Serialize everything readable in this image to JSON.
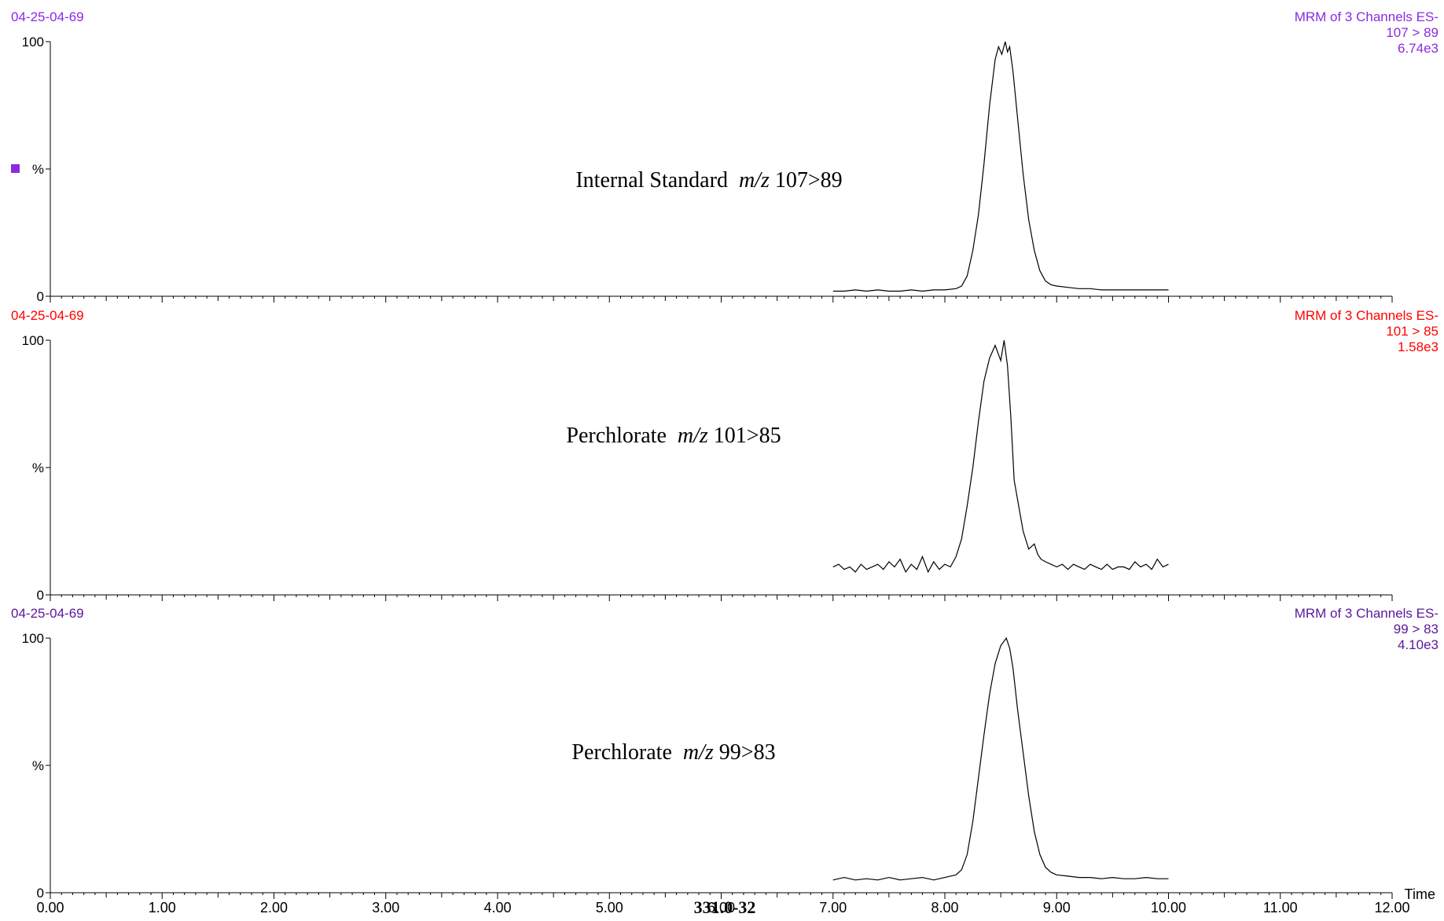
{
  "chart_data": [
    {
      "type": "line",
      "sample_id": "04-25-04-69",
      "function_label": "MRM of 3 Channels ES-",
      "transition": "107 > 89",
      "intensity": "6.74e3",
      "annotation": {
        "prefix": "Internal Standard",
        "mz_label": "m/z",
        "transition": "107>89"
      },
      "color": "#8a2be2",
      "marker": true,
      "ylabel": "%",
      "yticks": [
        "100",
        "0"
      ],
      "ylim": [
        0,
        100
      ],
      "xlim": [
        0,
        12
      ],
      "series": [
        {
          "x": [
            7.0,
            7.1,
            7.2,
            7.3,
            7.4,
            7.5,
            7.6,
            7.7,
            7.8,
            7.9,
            8.0,
            8.1,
            8.15,
            8.2,
            8.25,
            8.3,
            8.35,
            8.4,
            8.45,
            8.48,
            8.51,
            8.54,
            8.56,
            8.58,
            8.61,
            8.65,
            8.7,
            8.75,
            8.8,
            8.85,
            8.9,
            8.95,
            9.0,
            9.1,
            9.2,
            9.3,
            9.4,
            9.5,
            9.6,
            9.7,
            9.8,
            9.9,
            10.0
          ],
          "y": [
            2,
            2,
            2.5,
            2,
            2.5,
            2,
            2,
            2.5,
            2,
            2.5,
            2.5,
            3,
            4,
            8,
            18,
            32,
            52,
            75,
            93,
            98,
            95,
            100,
            96,
            98,
            88,
            70,
            48,
            30,
            18,
            10,
            6,
            4.5,
            4,
            3.5,
            3,
            3,
            2.5,
            2.5,
            2.5,
            2.5,
            2.5,
            2.5,
            2.5
          ]
        }
      ]
    },
    {
      "type": "line",
      "sample_id": "04-25-04-69",
      "function_label": "MRM of 3 Channels ES-",
      "transition": "101 > 85",
      "intensity": "1.58e3",
      "annotation": {
        "prefix": "Perchlorate",
        "mz_label": "m/z",
        "transition": "101>85"
      },
      "color": "#ff0000",
      "marker": false,
      "ylabel": "%",
      "yticks": [
        "100",
        "0"
      ],
      "ylim": [
        0,
        100
      ],
      "xlim": [
        0,
        12
      ],
      "series": [
        {
          "x": [
            7.0,
            7.05,
            7.1,
            7.15,
            7.2,
            7.25,
            7.3,
            7.35,
            7.4,
            7.45,
            7.5,
            7.55,
            7.6,
            7.65,
            7.7,
            7.75,
            7.8,
            7.85,
            7.9,
            7.95,
            8.0,
            8.05,
            8.1,
            8.15,
            8.2,
            8.25,
            8.3,
            8.35,
            8.4,
            8.45,
            8.5,
            8.53,
            8.56,
            8.59,
            8.62,
            8.66,
            8.7,
            8.75,
            8.8,
            8.83,
            8.86,
            8.9,
            8.95,
            9.0,
            9.05,
            9.1,
            9.15,
            9.2,
            9.25,
            9.3,
            9.35,
            9.4,
            9.45,
            9.5,
            9.55,
            9.6,
            9.65,
            9.7,
            9.75,
            9.8,
            9.85,
            9.9,
            9.95,
            10.0
          ],
          "y": [
            11,
            12,
            10,
            11,
            9,
            12,
            10,
            11,
            12,
            10,
            13,
            11,
            14,
            9,
            12,
            10,
            15,
            9,
            13,
            10,
            12,
            11,
            15,
            22,
            35,
            50,
            68,
            84,
            93,
            98,
            92,
            100,
            90,
            70,
            45,
            35,
            25,
            18,
            20,
            16,
            14,
            13,
            12,
            11,
            12,
            10,
            12,
            11,
            10,
            12,
            11,
            10,
            12,
            10,
            11,
            11,
            10,
            13,
            11,
            12,
            10,
            14,
            11,
            12
          ]
        }
      ]
    },
    {
      "type": "line",
      "sample_id": "04-25-04-69",
      "function_label": "MRM of 3 Channels ES-",
      "transition": "99 > 83",
      "intensity": "4.10e3",
      "annotation": {
        "prefix": "Perchlorate",
        "mz_label": "m/z",
        "transition": "99>83"
      },
      "color": "#5a189a",
      "marker": false,
      "ylabel": "%",
      "yticks": [
        "100",
        "0"
      ],
      "ylim": [
        0,
        100
      ],
      "xlim": [
        0,
        12
      ],
      "series": [
        {
          "x": [
            7.0,
            7.1,
            7.2,
            7.3,
            7.4,
            7.5,
            7.6,
            7.7,
            7.8,
            7.9,
            8.0,
            8.1,
            8.15,
            8.2,
            8.25,
            8.3,
            8.35,
            8.4,
            8.45,
            8.5,
            8.55,
            8.58,
            8.61,
            8.65,
            8.7,
            8.75,
            8.8,
            8.85,
            8.9,
            8.95,
            9.0,
            9.1,
            9.2,
            9.3,
            9.4,
            9.5,
            9.6,
            9.7,
            9.8,
            9.9,
            10.0
          ],
          "y": [
            5,
            6,
            5,
            5.5,
            5,
            6,
            5,
            5.5,
            6,
            5,
            6,
            7,
            9,
            15,
            28,
            45,
            62,
            78,
            90,
            97,
            100,
            96,
            88,
            72,
            55,
            38,
            24,
            15,
            10,
            8,
            7,
            6.5,
            6,
            6,
            5.5,
            6,
            5.5,
            5.5,
            6,
            5.5,
            5.5
          ]
        }
      ]
    }
  ],
  "x_axis": {
    "ticks": [
      "0.00",
      "1.00",
      "2.00",
      "3.00",
      "4.00",
      "5.00",
      "6.00",
      "7.00",
      "8.00",
      "9.00",
      "10.00",
      "11.00",
      "12.00"
    ],
    "label": "Time"
  },
  "footer_label": "331.0-32"
}
